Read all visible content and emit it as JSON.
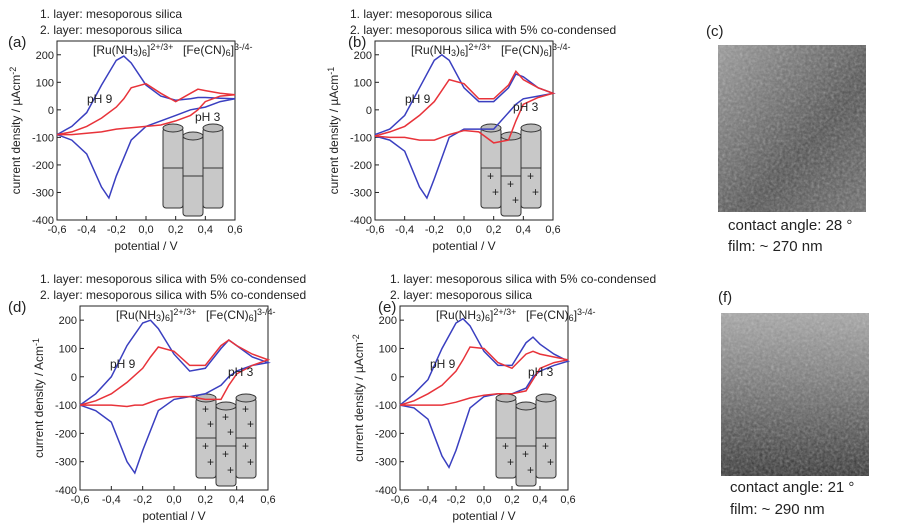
{
  "chart_data": [
    {
      "type": "line",
      "panel": "(a)",
      "subtitle": [
        "1. layer: mesoporous silica",
        "2. layer: mesoporous silica"
      ],
      "ru_label": [
        "[Ru(NH",
        "3",
        ")",
        "6",
        "]",
        "2+/3+"
      ],
      "fe_label": [
        "[Fe(CN)",
        "6",
        "]",
        "3-/4-"
      ],
      "xlabel": "potential / V",
      "ylabel": [
        "current density / µAcm",
        "-2"
      ],
      "x": [
        -0.6,
        -0.5,
        -0.4,
        -0.3,
        -0.2,
        -0.15,
        -0.1,
        0,
        0.1,
        0.2,
        0.3,
        0.35,
        0.4,
        0.5,
        0.6,
        0.5,
        0.4,
        0.35,
        0.3,
        0.2,
        0.1,
        0,
        -0.1,
        -0.2,
        -0.25,
        -0.3,
        -0.4,
        -0.5,
        -0.6
      ],
      "series": [
        {
          "name": "pH 9",
          "color": "#3a3fc0",
          "values": [
            -90,
            -60,
            -10,
            90,
            180,
            195,
            170,
            90,
            50,
            35,
            40,
            45,
            45,
            42,
            40,
            30,
            10,
            5,
            0,
            -20,
            -40,
            -60,
            -110,
            -240,
            -320,
            -280,
            -160,
            -110,
            -90
          ]
        },
        {
          "name": "pH 3",
          "color": "#e8333a",
          "values": [
            -90,
            -80,
            -60,
            -30,
            10,
            40,
            80,
            95,
            60,
            30,
            60,
            75,
            70,
            60,
            55,
            50,
            30,
            0,
            -20,
            -40,
            -55,
            -60,
            -65,
            -70,
            -75,
            -80,
            -85,
            -90,
            -90
          ]
        }
      ],
      "xlim": [
        -0.6,
        0.6
      ],
      "ylim": [
        -400,
        250
      ],
      "xticks": [
        {
          "value": -0.6,
          "label": "-0,6"
        },
        {
          "value": -0.4,
          "label": "-0,4"
        },
        {
          "value": -0.2,
          "label": "-0,2"
        },
        {
          "value": 0,
          "label": "0,0"
        },
        {
          "value": 0.2,
          "label": "0,2"
        },
        {
          "value": 0.4,
          "label": "0,4"
        },
        {
          "value": 0.6,
          "label": "0,6"
        }
      ],
      "yticks": [
        -400,
        -300,
        -200,
        -100,
        0,
        100,
        200
      ]
    },
    {
      "type": "line",
      "panel": "(b)",
      "subtitle": [
        "1. layer: mesoporous silica",
        "2. layer: mesoporous silica with 5% co-condensed"
      ],
      "ru_label": [
        "[Ru(NH",
        "3",
        ")",
        "6",
        "]",
        "2+/3+"
      ],
      "fe_label": [
        "[Fe(CN)",
        "6",
        "]",
        "3-/4-"
      ],
      "xlabel": "potential / V",
      "ylabel": [
        "current density / µAcm",
        "-1"
      ],
      "x": [
        -0.6,
        -0.5,
        -0.4,
        -0.3,
        -0.2,
        -0.15,
        -0.1,
        0,
        0.1,
        0.2,
        0.3,
        0.35,
        0.4,
        0.5,
        0.6,
        0.5,
        0.4,
        0.35,
        0.3,
        0.2,
        0.1,
        0,
        -0.1,
        -0.2,
        -0.25,
        -0.3,
        -0.4,
        -0.5,
        -0.6
      ],
      "series": [
        {
          "name": "pH 9",
          "color": "#3a3fc0",
          "values": [
            -90,
            -70,
            -20,
            80,
            180,
            200,
            180,
            80,
            30,
            30,
            80,
            130,
            120,
            80,
            60,
            50,
            40,
            20,
            -10,
            -70,
            -70,
            -70,
            -100,
            -250,
            -320,
            -280,
            -150,
            -110,
            -95
          ]
        },
        {
          "name": "pH 3",
          "color": "#e8333a",
          "values": [
            -95,
            -80,
            -60,
            -20,
            30,
            70,
            110,
            95,
            40,
            40,
            90,
            140,
            110,
            80,
            60,
            45,
            20,
            -40,
            -110,
            -120,
            -80,
            -75,
            -90,
            -110,
            -110,
            -110,
            -100,
            -100,
            -95
          ]
        }
      ],
      "xlim": [
        -0.6,
        0.6
      ],
      "ylim": [
        -400,
        250
      ],
      "xticks": [
        {
          "value": -0.6,
          "label": "-0,6"
        },
        {
          "value": -0.4,
          "label": "-0,4"
        },
        {
          "value": -0.2,
          "label": "-0,2"
        },
        {
          "value": 0,
          "label": "0,0"
        },
        {
          "value": 0.2,
          "label": "0,2"
        },
        {
          "value": 0.4,
          "label": "0,4"
        },
        {
          "value": 0.6,
          "label": "0,6"
        }
      ],
      "yticks": [
        -400,
        -300,
        -200,
        -100,
        0,
        100,
        200
      ]
    },
    {
      "type": "line",
      "panel": "(d)",
      "subtitle": [
        "1. layer: mesoporous silica with 5% co-condensed",
        "2. layer: mesoporous silica with 5% co-condensed"
      ],
      "ru_label": [
        "[Ru(NH",
        "3",
        ")",
        "6",
        "]",
        "2+/3+"
      ],
      "fe_label": [
        "[Fe(CN)",
        "6",
        "]",
        "3-/4-"
      ],
      "xlabel": "potential / V",
      "ylabel": [
        "current density / Acm",
        "-1"
      ],
      "x": [
        -0.6,
        -0.5,
        -0.4,
        -0.3,
        -0.2,
        -0.15,
        -0.1,
        0,
        0.1,
        0.2,
        0.3,
        0.35,
        0.4,
        0.5,
        0.6,
        0.5,
        0.4,
        0.35,
        0.3,
        0.2,
        0.1,
        0,
        -0.1,
        -0.2,
        -0.25,
        -0.3,
        -0.4,
        -0.5,
        -0.6
      ],
      "series": [
        {
          "name": "pH 9",
          "color": "#3a3fc0",
          "values": [
            -100,
            -60,
            0,
            110,
            190,
            200,
            170,
            80,
            20,
            30,
            100,
            130,
            110,
            70,
            50,
            40,
            20,
            0,
            -30,
            -60,
            -70,
            -80,
            -120,
            -260,
            -340,
            -300,
            -160,
            -120,
            -100
          ]
        },
        {
          "name": "pH 3",
          "color": "#e8333a",
          "values": [
            -100,
            -85,
            -60,
            -20,
            30,
            70,
            105,
            90,
            40,
            40,
            110,
            130,
            110,
            80,
            60,
            40,
            10,
            -30,
            -80,
            -80,
            -70,
            -70,
            -80,
            -100,
            -100,
            -105,
            -100,
            -100,
            -100
          ]
        }
      ],
      "xlim": [
        -0.6,
        0.6
      ],
      "ylim": [
        -400,
        250
      ],
      "xticks": [
        {
          "value": -0.6,
          "label": "-0,6"
        },
        {
          "value": -0.4,
          "label": "-0,4"
        },
        {
          "value": -0.2,
          "label": "-0,2"
        },
        {
          "value": 0,
          "label": "0,0"
        },
        {
          "value": 0.2,
          "label": "0,2"
        },
        {
          "value": 0.4,
          "label": "0,4"
        },
        {
          "value": 0.6,
          "label": "0,6"
        }
      ],
      "yticks": [
        -400,
        -300,
        -200,
        -100,
        0,
        100,
        200
      ]
    },
    {
      "type": "line",
      "panel": "(e)",
      "subtitle": [
        "1. layer: mesoporous silica with 5% co-condensed",
        "2. layer: mesoporous silica"
      ],
      "ru_label": [
        "[Ru(NH",
        "3",
        ")",
        "6",
        "]",
        "2+/3+"
      ],
      "fe_label": [
        "[Fe(CN)",
        "6",
        "]",
        "3-/4-"
      ],
      "xlabel": "potential / V",
      "ylabel": [
        "current density / µAcm",
        "-2"
      ],
      "x": [
        -0.6,
        -0.5,
        -0.4,
        -0.3,
        -0.2,
        -0.15,
        -0.1,
        0,
        0.1,
        0.2,
        0.3,
        0.35,
        0.4,
        0.5,
        0.6,
        0.5,
        0.4,
        0.35,
        0.3,
        0.2,
        0.1,
        0,
        -0.1,
        -0.2,
        -0.25,
        -0.3,
        -0.4,
        -0.5,
        -0.6
      ],
      "series": [
        {
          "name": "pH 9",
          "color": "#3a3fc0",
          "values": [
            -100,
            -60,
            -10,
            100,
            190,
            205,
            180,
            90,
            40,
            40,
            120,
            140,
            115,
            80,
            55,
            40,
            20,
            0,
            -40,
            -60,
            -60,
            -70,
            -110,
            -260,
            -320,
            -280,
            -150,
            -110,
            -100
          ]
        },
        {
          "name": "pH 3",
          "color": "#e8333a",
          "values": [
            -100,
            -85,
            -60,
            -30,
            20,
            60,
            105,
            100,
            50,
            30,
            80,
            90,
            80,
            70,
            60,
            50,
            30,
            -10,
            -50,
            -60,
            -60,
            -65,
            -75,
            -90,
            -95,
            -100,
            -100,
            -100,
            -100
          ]
        }
      ],
      "xlim": [
        -0.6,
        0.6
      ],
      "ylim": [
        -400,
        250
      ],
      "xticks": [
        {
          "value": -0.6,
          "label": "-0,6"
        },
        {
          "value": -0.4,
          "label": "-0,4"
        },
        {
          "value": -0.2,
          "label": "-0,2"
        },
        {
          "value": 0,
          "label": "0,0"
        },
        {
          "value": 0.2,
          "label": "0,2"
        },
        {
          "value": 0.4,
          "label": "0,4"
        },
        {
          "value": 0.6,
          "label": "0,6"
        }
      ],
      "yticks": [
        -400,
        -300,
        -200,
        -100,
        0,
        100,
        200
      ]
    }
  ],
  "images": [
    {
      "panel": "(c)",
      "caption": [
        "contact angle: 28 °",
        "film: ~ 270 nm"
      ]
    },
    {
      "panel": "(f)",
      "caption": [
        "contact angle: 21 °",
        "film: ~ 290 nm"
      ]
    }
  ]
}
